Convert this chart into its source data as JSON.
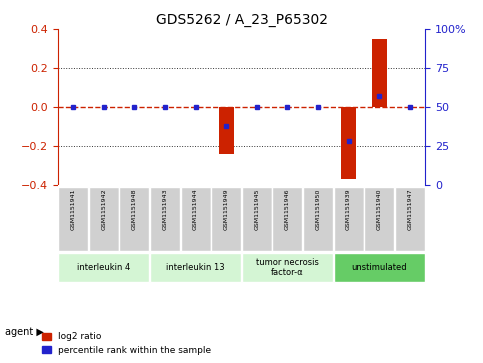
{
  "title": "GDS5262 / A_23_P65302",
  "samples": [
    "GSM1151941",
    "GSM1151942",
    "GSM1151948",
    "GSM1151943",
    "GSM1151944",
    "GSM1151949",
    "GSM1151945",
    "GSM1151946",
    "GSM1151950",
    "GSM1151939",
    "GSM1151940",
    "GSM1151947"
  ],
  "log2_ratio": [
    0,
    0,
    0,
    0,
    0,
    -0.24,
    0,
    0,
    0,
    -0.37,
    0.35,
    0
  ],
  "percentile": [
    50,
    50,
    50,
    50,
    50,
    38,
    50,
    50,
    50,
    28,
    57,
    50
  ],
  "ylim": [
    -0.4,
    0.4
  ],
  "yticks_left": [
    -0.4,
    -0.2,
    0,
    0.2,
    0.4
  ],
  "yticks_right": [
    0,
    25,
    50,
    75,
    100
  ],
  "agent_groups": [
    {
      "label": "interleukin 4",
      "start": 0,
      "end": 3,
      "color": "#d4f5d4"
    },
    {
      "label": "interleukin 13",
      "start": 3,
      "end": 6,
      "color": "#d4f5d4"
    },
    {
      "label": "tumor necrosis\nfactor-α",
      "start": 6,
      "end": 9,
      "color": "#d4f5d4"
    },
    {
      "label": "unstimulated",
      "start": 9,
      "end": 12,
      "color": "#66cc66"
    }
  ],
  "bar_color": "#cc2200",
  "dot_color": "#2222cc",
  "zero_line_color": "#cc2200",
  "grid_color": "#333333",
  "background_color": "#ffffff",
  "sample_box_color": "#d0d0d0",
  "agent_label": "agent"
}
